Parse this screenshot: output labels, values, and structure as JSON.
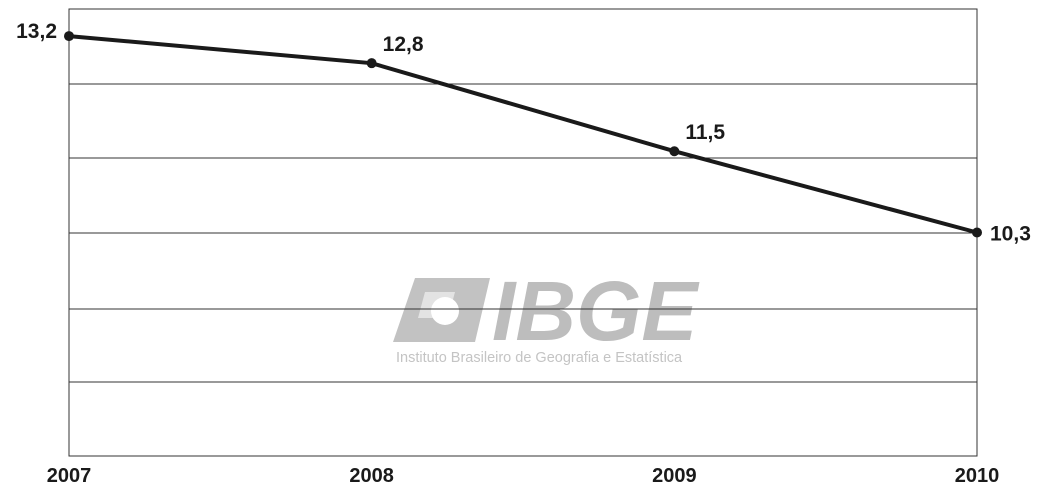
{
  "chart_data": {
    "type": "line",
    "x": [
      "2007",
      "2008",
      "2009",
      "2010"
    ],
    "series": [
      {
        "values": [
          13.2,
          12.8,
          11.5,
          10.3
        ],
        "labels": [
          "13,2",
          "12,8",
          "11,5",
          "10,3"
        ]
      }
    ],
    "ylim": [
      7.0,
      13.6
    ],
    "grid": true,
    "legend": "none",
    "colors": {
      "line": "#1a1a1a",
      "grid": "#333333",
      "watermark": "#bdbdbd"
    }
  },
  "watermark": {
    "logo_text": "IBGE",
    "caption": "Instituto Brasileiro de Geografia e Estatística"
  }
}
